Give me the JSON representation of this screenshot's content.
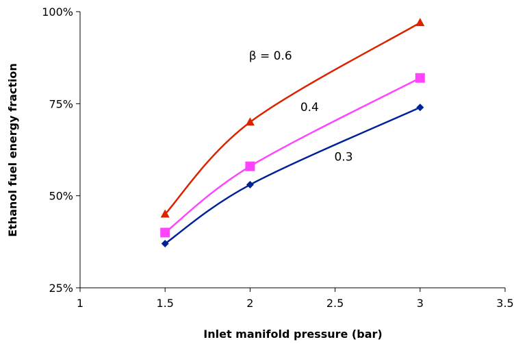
{
  "chart_data": {
    "type": "line",
    "xlabel": "Inlet manifold pressure (bar)",
    "ylabel": "Ethanol fuel energy fraction",
    "xlim": [
      1,
      3.5
    ],
    "ylim": [
      0.25,
      1.0
    ],
    "x_ticks": [
      "1",
      "1.5",
      "2",
      "2.5",
      "3",
      "3.5"
    ],
    "y_ticks": [
      "25%",
      "50%",
      "75%",
      "100%"
    ],
    "grid": false,
    "legend": "none",
    "series": [
      {
        "label": "β = 0.6",
        "color": "#dd2200",
        "marker": "triangle",
        "x": [
          1.5,
          2,
          3
        ],
        "y": [
          0.45,
          0.7,
          0.97
        ],
        "label_at": [
          2.12,
          0.87
        ]
      },
      {
        "label": "0.4",
        "color": "#ff44ff",
        "marker": "square",
        "x": [
          1.5,
          2,
          3
        ],
        "y": [
          0.4,
          0.58,
          0.82
        ],
        "label_at": [
          2.35,
          0.73
        ]
      },
      {
        "label": "0.3",
        "color": "#002299",
        "marker": "diamond",
        "x": [
          1.5,
          2,
          3
        ],
        "y": [
          0.37,
          0.53,
          0.74
        ],
        "label_at": [
          2.55,
          0.595
        ]
      }
    ]
  }
}
